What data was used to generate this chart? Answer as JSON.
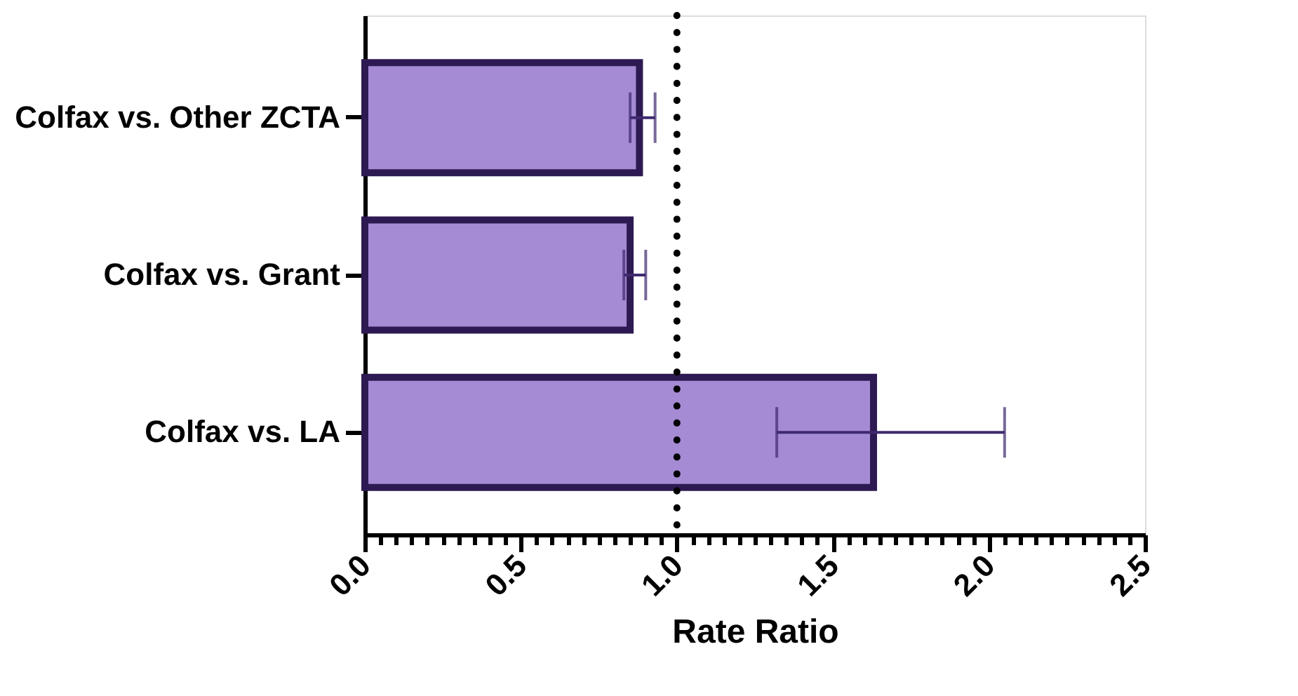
{
  "chart_data": {
    "type": "bar",
    "orientation": "horizontal",
    "xlabel": "Rate Ratio",
    "categories": [
      "Colfax vs. Other ZCTA",
      "Colfax vs. Grant",
      "Colfax vs. LA"
    ],
    "values": [
      0.88,
      0.85,
      1.63
    ],
    "errors": [
      [
        0.85,
        0.93
      ],
      [
        0.83,
        0.9
      ],
      [
        1.32,
        2.05
      ]
    ],
    "color": "#a58bd4",
    "xlim": [
      0,
      2.5
    ],
    "xticks": [
      {
        "value": 0,
        "label": "0.0"
      },
      {
        "value": 0.05,
        "label": null
      },
      {
        "value": 0.1,
        "label": null
      },
      {
        "value": 0.15,
        "label": null
      },
      {
        "value": 0.2,
        "label": null
      },
      {
        "value": 0.25,
        "label": null
      },
      {
        "value": 0.3,
        "label": null
      },
      {
        "value": 0.35,
        "label": null
      },
      {
        "value": 0.4,
        "label": null
      },
      {
        "value": 0.45,
        "label": null
      },
      {
        "value": 0.5,
        "label": "0.5"
      },
      {
        "value": 0.55,
        "label": null
      },
      {
        "value": 0.6,
        "label": null
      },
      {
        "value": 0.65,
        "label": null
      },
      {
        "value": 0.7,
        "label": null
      },
      {
        "value": 0.75,
        "label": null
      },
      {
        "value": 0.8,
        "label": null
      },
      {
        "value": 0.85,
        "label": null
      },
      {
        "value": 0.9,
        "label": null
      },
      {
        "value": 0.95,
        "label": null
      },
      {
        "value": 1,
        "label": "1.0"
      },
      {
        "value": 1.05,
        "label": null
      },
      {
        "value": 1.1,
        "label": null
      },
      {
        "value": 1.15,
        "label": null
      },
      {
        "value": 1.2,
        "label": null
      },
      {
        "value": 1.25,
        "label": null
      },
      {
        "value": 1.3,
        "label": null
      },
      {
        "value": 1.35,
        "label": null
      },
      {
        "value": 1.4,
        "label": null
      },
      {
        "value": 1.45,
        "label": null
      },
      {
        "value": 1.5,
        "label": "1.5"
      },
      {
        "value": 1.55,
        "label": null
      },
      {
        "value": 1.6,
        "label": null
      },
      {
        "value": 1.65,
        "label": null
      },
      {
        "value": 1.7,
        "label": null
      },
      {
        "value": 1.75,
        "label": null
      },
      {
        "value": 1.8,
        "label": null
      },
      {
        "value": 1.85,
        "label": null
      },
      {
        "value": 1.9,
        "label": null
      },
      {
        "value": 1.95,
        "label": null
      },
      {
        "value": 2,
        "label": "2.0"
      },
      {
        "value": 2.05,
        "label": null
      },
      {
        "value": 2.1,
        "label": null
      },
      {
        "value": 2.15,
        "label": null
      },
      {
        "value": 2.2,
        "label": null
      },
      {
        "value": 2.25,
        "label": null
      },
      {
        "value": 2.3,
        "label": null
      },
      {
        "value": 2.35,
        "label": null
      },
      {
        "value": 2.4,
        "label": null
      },
      {
        "value": 2.45,
        "label": null
      },
      {
        "value": 2.5,
        "label": "2.5"
      }
    ],
    "ref_lines": [
      {
        "axis": "x",
        "value": 1,
        "color": "#000000",
        "line_style": "dotted"
      }
    ],
    "grid": false
  }
}
